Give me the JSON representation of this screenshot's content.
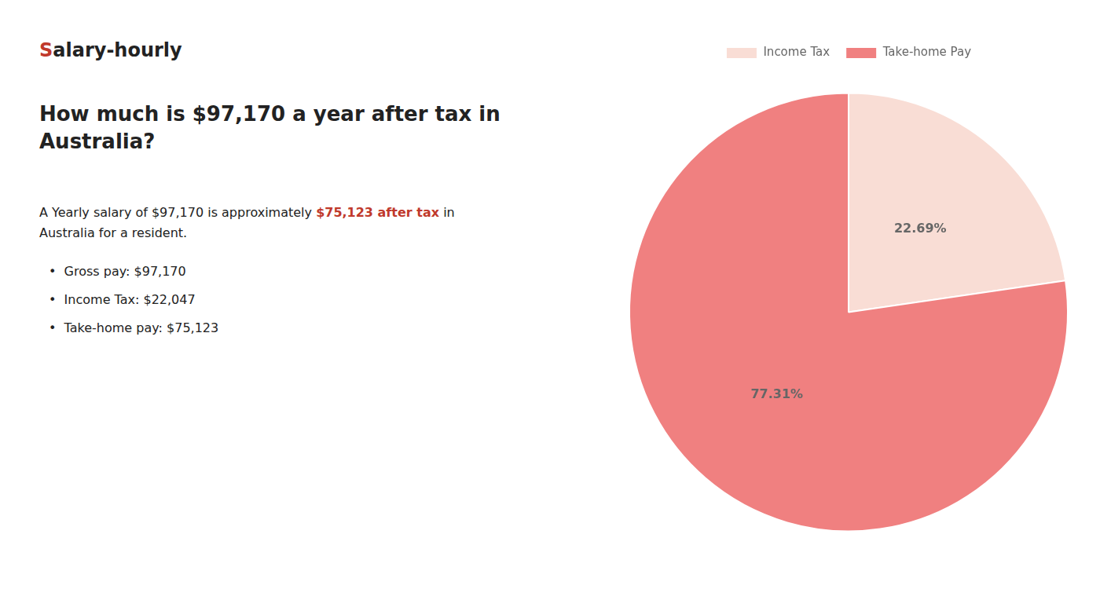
{
  "chart_data": {
    "type": "pie",
    "title": "How much is $97,170 a year after tax in\nAustralia?",
    "annotations": [
      {
        "text": "S",
        "color": "#c0392b"
      },
      {
        "text": "alary-hourly"
      },
      {
        "text": "A Yearly salary of $97,170 is approximately "
      },
      {
        "text": "$75,123 after tax",
        "color": "#c0392b"
      },
      {
        "text": " in"
      },
      {
        "text": "Australia for a resident."
      },
      {
        "text": "•  Gross pay: $97,170"
      },
      {
        "text": "•  Income Tax: $22,047"
      },
      {
        "text": "•  Take-home pay: $75,123"
      }
    ],
    "categories": [
      "Income Tax",
      "Take-home Pay"
    ],
    "values": [
      22.69,
      77.31
    ],
    "value_labels": [
      "22.69%",
      "77.31%"
    ],
    "colors": [
      "#f9ddd5",
      "#f08080"
    ],
    "data_labels": true,
    "legend": "top"
  }
}
